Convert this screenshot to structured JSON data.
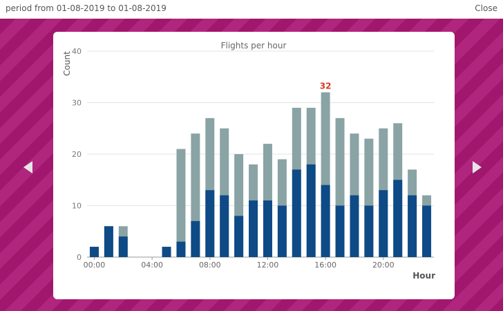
{
  "header": {
    "period_text": "period from 01-08-2019 to 01-08-2019",
    "close_label": "Close"
  },
  "nav": {
    "prev_icon": "triangle-left-icon",
    "next_icon": "triangle-right-icon"
  },
  "colors": {
    "background_stripe_a": "#a0176d",
    "background_stripe_b": "#b0257d",
    "bar_total": "#8aa3a5",
    "bar_part": "#0e4a86",
    "peak_label": "#d9391f"
  },
  "chart_data": {
    "type": "bar",
    "title": "Flights per hour",
    "xlabel": "Hour",
    "ylabel": "Count",
    "ylim": [
      0,
      40
    ],
    "yticks": [
      0,
      10,
      20,
      30,
      40
    ],
    "grid": true,
    "categories": [
      0,
      1,
      2,
      3,
      4,
      5,
      6,
      7,
      8,
      9,
      10,
      11,
      12,
      13,
      14,
      15,
      16,
      17,
      18,
      19,
      20,
      21,
      22,
      23
    ],
    "xtick_labels": [
      {
        "index": 0,
        "label": "00:00"
      },
      {
        "index": 4,
        "label": "04:00"
      },
      {
        "index": 8,
        "label": "08:00"
      },
      {
        "index": 12,
        "label": "12:00"
      },
      {
        "index": 16,
        "label": "16:00"
      },
      {
        "index": 20,
        "label": "20:00"
      }
    ],
    "series": [
      {
        "values": [
          2,
          6,
          6,
          0,
          0,
          2,
          21,
          24,
          27,
          25,
          20,
          18,
          22,
          19,
          29,
          29,
          32,
          27,
          24,
          23,
          25,
          26,
          17,
          12
        ]
      },
      {
        "values": [
          2,
          6,
          4,
          0,
          0,
          2,
          3,
          7,
          13,
          12,
          8,
          11,
          11,
          10,
          17,
          18,
          14,
          10,
          12,
          10,
          13,
          15,
          12,
          10
        ]
      }
    ],
    "annotations": [
      {
        "index": 16,
        "text": "32"
      }
    ]
  }
}
